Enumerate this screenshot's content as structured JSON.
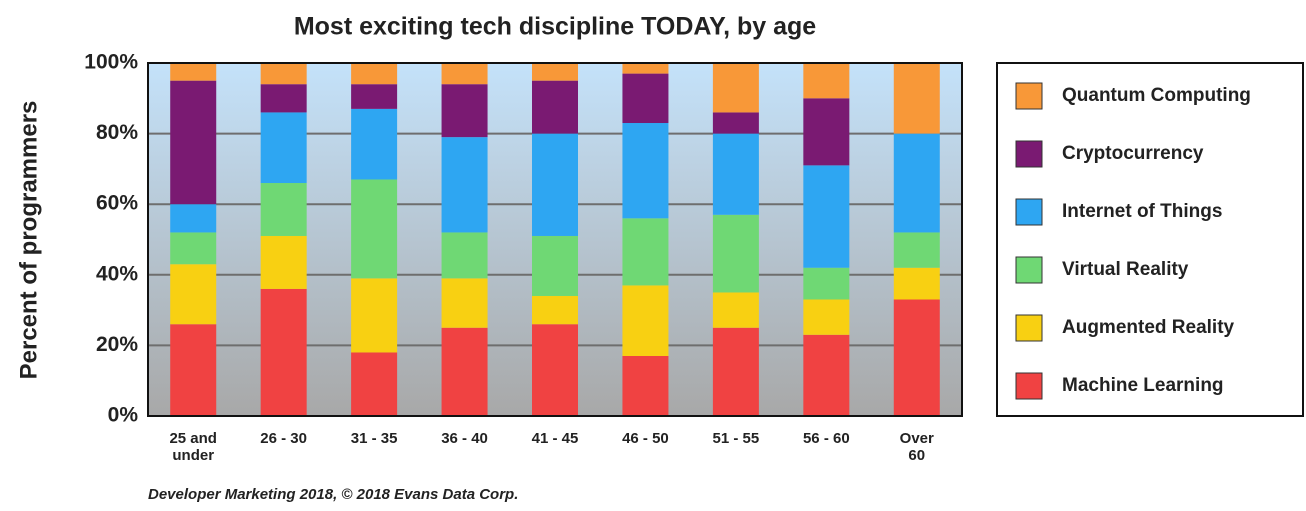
{
  "chart_data": {
    "type": "stacked_bar",
    "title": "Most exciting tech discipline TODAY, by age",
    "y_label": "Percent of programmers",
    "source": "Developer Marketing 2018, © 2018 Evans Data Corp.",
    "categories": [
      "25 and\nunder",
      "26 - 30",
      "31 - 35",
      "36 - 40",
      "41 - 45",
      "46 - 50",
      "51 - 55",
      "56 - 60",
      "Over\n60"
    ],
    "series": [
      {
        "name": "Machine Learning",
        "color": "#f04242",
        "values": [
          26,
          36,
          18,
          25,
          26,
          17,
          25,
          23,
          33
        ]
      },
      {
        "name": "Augmented Reality",
        "color": "#f8d012",
        "values": [
          17,
          15,
          21,
          14,
          8,
          20,
          10,
          10,
          9
        ]
      },
      {
        "name": "Virtual Reality",
        "color": "#6fd874",
        "values": [
          9,
          15,
          28,
          13,
          17,
          19,
          22,
          9,
          10
        ]
      },
      {
        "name": "Internet of Things",
        "color": "#2ea6f2",
        "values": [
          8,
          20,
          20,
          27,
          29,
          27,
          23,
          29,
          28
        ]
      },
      {
        "name": "Cryptocurrency",
        "color": "#7a1a72",
        "values": [
          35,
          8,
          7,
          15,
          15,
          14,
          6,
          19,
          0
        ]
      },
      {
        "name": "Quantum Computing",
        "color": "#f89838",
        "values": [
          5,
          6,
          6,
          6,
          5,
          3,
          14,
          10,
          20
        ]
      }
    ],
    "ylim": [
      0,
      100
    ],
    "yticks": [
      {
        "value": 0,
        "label": "0%"
      },
      {
        "value": 20,
        "label": "20%"
      },
      {
        "value": 40,
        "label": "40%"
      },
      {
        "value": 60,
        "label": "60%"
      },
      {
        "value": 80,
        "label": "80%"
      },
      {
        "value": 100,
        "label": "100%"
      }
    ],
    "grid": true
  }
}
